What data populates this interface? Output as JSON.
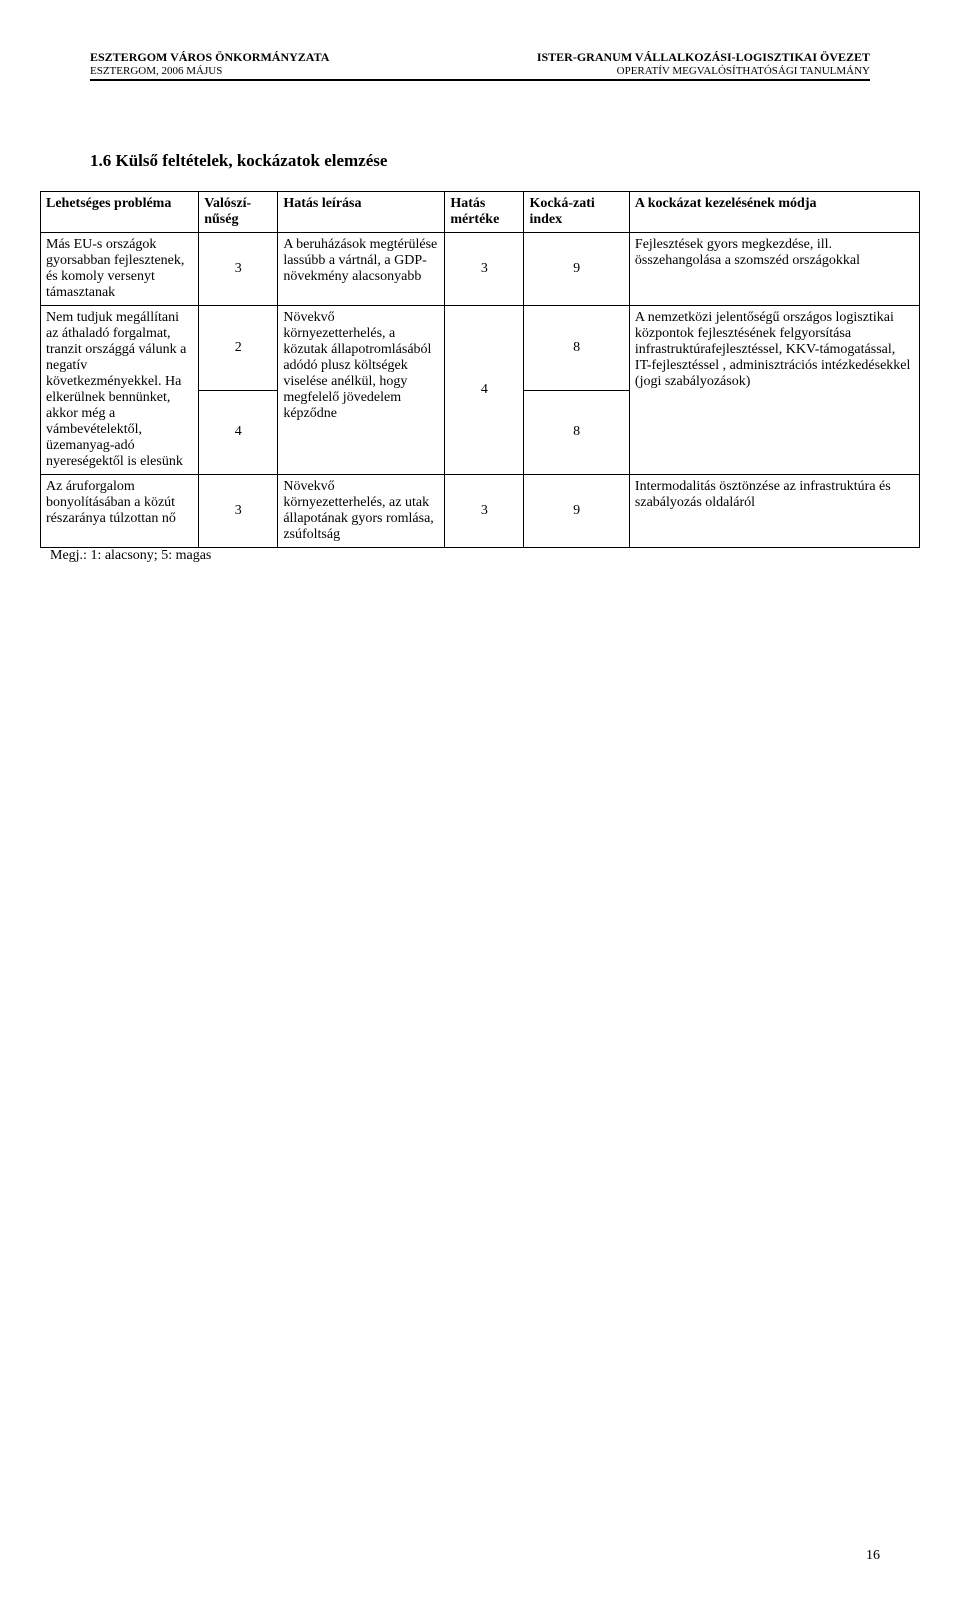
{
  "header": {
    "left1": "ESZTERGOM VÁROS ÖNKORMÁNYZATA",
    "left2": "ESZTERGOM, 2006 MÁJUS",
    "right1": "ISTER-GRANUM VÁLLALKOZÁSI-LOGISZTIKAI ÖVEZET",
    "right2": "OPERATÍV MEGVALÓSÍTHATÓSÁGI TANULMÁNY"
  },
  "section_title": "1.6 Külső feltételek, kockázatok elemzése",
  "columns": {
    "c1": "Lehetséges probléma",
    "c2": "Valószí-nűség",
    "c3": "Hatás leírása",
    "c4": "Hatás mértéke",
    "c5": "Kocká-zati index",
    "c6": "A kockázat kezelésének módja"
  },
  "rows": {
    "r1": {
      "problem": "Más EU-s országok gyorsabban fejlesztenek, és komoly versenyt támasztanak",
      "prob": "3",
      "effect": "A beruházások megtérülése lassúbb a vártnál, a GDP-növekmény alacsonyabb",
      "magnitude": "3",
      "risk": "9",
      "handling": "Fejlesztések gyors megkezdése, ill. összehangolása a szomszéd országokkal"
    },
    "r2": {
      "problem": "Nem tudjuk megállítani az áthaladó forgalmat, tranzit országgá válunk a negatív következményekkel. Ha elkerülnek bennünket, akkor még a vámbevételektől, üzemanyag-adó nyereségektől is elesünk",
      "prob_a": "2",
      "prob_b": "4",
      "effect": "Növekvő környezetterhelés, a közutak állapotromlásából adódó plusz költségek viselése anélkül, hogy megfelelő jövedelem képződne",
      "magnitude": "4",
      "risk_a": "8",
      "risk_b": "8",
      "handling": "A nemzetközi jelentőségű országos logisztikai központok fejlesztésének felgyorsítása infrastruktúrafejlesztéssel, KKV-támogatással, IT-fejlesztéssel , adminisztrációs intézkedésekkel (jogi szabályozások)"
    },
    "r3": {
      "problem": "Az áruforgalom bonyolításában a közút részaránya túlzottan nő",
      "prob": "3",
      "effect": "Növekvő környezetterhelés, az utak állapotának gyors romlása, zsúfoltság",
      "magnitude": "3",
      "risk": "9",
      "handling": "Intermodalitás ösztönzése az infrastruktúra és szabályozás oldaláról"
    }
  },
  "note": "Megj.: 1: alacsony; 5: magas",
  "page_number": "16"
}
